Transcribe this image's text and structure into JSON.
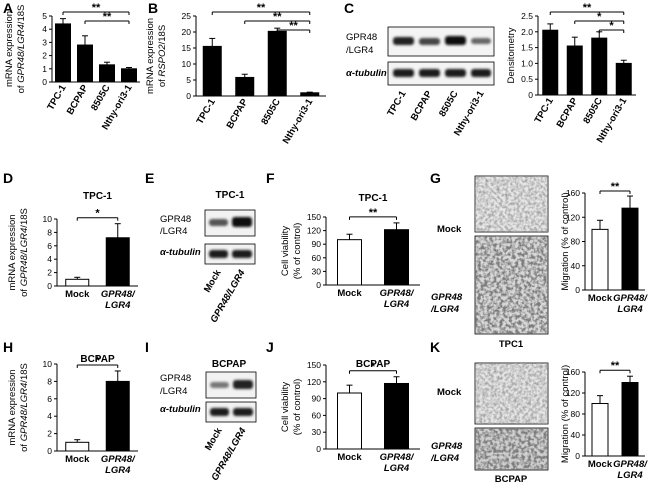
{
  "panel_labels": [
    "A",
    "B",
    "C",
    "D",
    "E",
    "F",
    "G",
    "H",
    "I",
    "J",
    "K"
  ],
  "chart_data": [
    {
      "id": "A",
      "type": "bar",
      "categories": [
        "TPC-1",
        "BCPAP",
        "8505C",
        "Nthy-ori3-1"
      ],
      "values": [
        4.4,
        2.8,
        1.3,
        1.0
      ],
      "errors": [
        0.4,
        0.7,
        0.2,
        0.1
      ],
      "ylim": [
        0,
        5
      ],
      "ticks": [
        "0",
        "1",
        "2",
        "3",
        "4",
        "5"
      ],
      "ylabel_lines": [
        "mRNA expression",
        "of GPR48/LGR4/18S"
      ],
      "fills": [
        "#000000",
        "#000000",
        "#000000",
        "#000000"
      ],
      "sig": [
        {
          "from": 0,
          "to": 3,
          "label": "**"
        },
        {
          "from": 1,
          "to": 3,
          "label": "**"
        }
      ]
    },
    {
      "id": "B",
      "type": "bar",
      "categories": [
        "TPC-1",
        "BCPAP",
        "8505C",
        "Nthy-ori3-1"
      ],
      "values": [
        15.5,
        5.8,
        20.2,
        1.0
      ],
      "errors": [
        2.5,
        1.0,
        1.0,
        0.2
      ],
      "ylim": [
        0,
        25
      ],
      "ticks": [
        "0",
        "5",
        "10",
        "15",
        "20",
        "25"
      ],
      "ylabel_lines": [
        "mRNA expression",
        "of RSPO2/18S"
      ],
      "fills": [
        "#000000",
        "#000000",
        "#000000",
        "#000000"
      ],
      "sig": [
        {
          "from": 0,
          "to": 3,
          "label": "**"
        },
        {
          "from": 1,
          "to": 3,
          "label": "**"
        },
        {
          "from": 2,
          "to": 3,
          "label": "**"
        }
      ]
    },
    {
      "id": "C",
      "type": "bar",
      "categories": [
        "TPC-1",
        "BCPAP",
        "8505C",
        "Nthy-ori3-1"
      ],
      "values": [
        2.05,
        1.55,
        1.8,
        1.0
      ],
      "errors": [
        0.2,
        0.28,
        0.2,
        0.1
      ],
      "ylim": [
        0,
        2.5
      ],
      "ticks": [
        "0",
        "0.5",
        "1.0",
        "1.5",
        "2.0",
        "2.5"
      ],
      "ylabel_lines": [
        "Densitometry"
      ],
      "fills": [
        "#000000",
        "#000000",
        "#000000",
        "#000000"
      ],
      "sig": [
        {
          "from": 0,
          "to": 3,
          "label": "**"
        },
        {
          "from": 1,
          "to": 3,
          "label": "*"
        },
        {
          "from": 2,
          "to": 3,
          "label": "*"
        }
      ]
    },
    {
      "id": "D",
      "type": "bar",
      "title": "TPC-1",
      "categories": [
        "Mock",
        "GPR48/LGR4"
      ],
      "values": [
        1.0,
        7.2
      ],
      "errors": [
        0.3,
        2.1
      ],
      "ylim": [
        0,
        10
      ],
      "ticks": [
        "0",
        "2",
        "4",
        "6",
        "8",
        "10"
      ],
      "ylabel_lines": [
        "mRNA expression",
        "of GPR48/LGR4/18S"
      ],
      "fills": [
        "#ffffff",
        "#000000"
      ],
      "sig": [
        {
          "from": 0,
          "to": 1,
          "label": "*"
        }
      ]
    },
    {
      "id": "F",
      "type": "bar",
      "title": "TPC-1",
      "categories": [
        "Mock",
        "GPR48/LGR4"
      ],
      "values": [
        100,
        122
      ],
      "errors": [
        12,
        15
      ],
      "ylim": [
        0,
        150
      ],
      "ticks": [
        "0",
        "30",
        "60",
        "90",
        "120",
        "150"
      ],
      "ylabel_lines": [
        "Cell viability",
        "(% of control)"
      ],
      "fills": [
        "#ffffff",
        "#000000"
      ],
      "sig": [
        {
          "from": 0,
          "to": 1,
          "label": "**"
        }
      ]
    },
    {
      "id": "G",
      "type": "bar",
      "categories": [
        "Mock",
        "GPR48/LGR4"
      ],
      "values": [
        100,
        135
      ],
      "errors": [
        15,
        20
      ],
      "ylim": [
        0,
        160
      ],
      "ticks": [
        "0",
        "40",
        "80",
        "120",
        "160"
      ],
      "ylabel_lines": [
        "Migration (% of control)"
      ],
      "fills": [
        "#ffffff",
        "#000000"
      ],
      "sig": [
        {
          "from": 0,
          "to": 1,
          "label": "**"
        }
      ]
    },
    {
      "id": "H",
      "type": "bar",
      "title": "BCPAP",
      "categories": [
        "Mock",
        "GPR48/LGR4"
      ],
      "values": [
        1.0,
        8.0
      ],
      "errors": [
        0.3,
        1.2
      ],
      "ylim": [
        0,
        10
      ],
      "ticks": [
        "0",
        "2",
        "4",
        "6",
        "8",
        "10"
      ],
      "ylabel_lines": [
        "mRNA expression",
        "of GPR48/LGR4/18S"
      ],
      "fills": [
        "#ffffff",
        "#000000"
      ],
      "sig": [
        {
          "from": 0,
          "to": 1,
          "label": "*"
        }
      ]
    },
    {
      "id": "J",
      "type": "bar",
      "title": "BCPAP",
      "categories": [
        "Mock",
        "GPR48/LGR4"
      ],
      "values": [
        100,
        117
      ],
      "errors": [
        14,
        12
      ],
      "ylim": [
        0,
        150
      ],
      "ticks": [
        "0",
        "30",
        "60",
        "90",
        "120",
        "150"
      ],
      "ylabel_lines": [
        "Cell viability",
        "(% of control)"
      ],
      "fills": [
        "#ffffff",
        "#000000"
      ],
      "sig": [
        {
          "from": 0,
          "to": 1,
          "label": "*"
        }
      ]
    },
    {
      "id": "K",
      "type": "bar",
      "categories": [
        "Mock",
        "GPR48/LGR4"
      ],
      "values": [
        100,
        140
      ],
      "errors": [
        15,
        12
      ],
      "ylim": [
        0,
        160
      ],
      "ticks": [
        "0",
        "40",
        "80",
        "120",
        "160"
      ],
      "ylabel_lines": [
        "Migration (% of control)"
      ],
      "fills": [
        "#ffffff",
        "#000000"
      ],
      "sig": [
        {
          "from": 0,
          "to": 1,
          "label": "**"
        }
      ]
    }
  ],
  "blots": {
    "C": {
      "rows": [
        "GPR48",
        "/LGR4",
        "α-tubulin"
      ],
      "lanes": [
        "TPC-1",
        "BCPAP",
        "8505C",
        "Nthy-ori3-1"
      ]
    },
    "E": {
      "title": "TPC-1",
      "rows": [
        "GPR48",
        "/LGR4",
        "α-tubulin"
      ],
      "lanes": [
        "Mock",
        "GPR48/LGR4"
      ]
    },
    "I": {
      "title": "BCPAP",
      "rows": [
        "GPR48",
        "/LGR4",
        "α-tubulin"
      ],
      "lanes": [
        "Mock",
        "GPR48/LGR4"
      ]
    }
  },
  "micro": {
    "G": {
      "labels": [
        "Mock",
        "GPR48",
        "/LGR4"
      ],
      "caption": "TPC1"
    },
    "K": {
      "labels": [
        "Mock",
        "GPR48",
        "/LGR4"
      ],
      "caption": "BCPAP"
    }
  }
}
